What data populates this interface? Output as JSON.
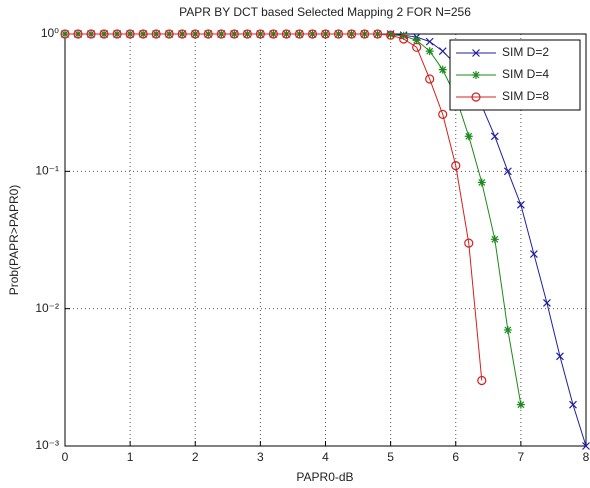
{
  "chart_data": {
    "type": "line",
    "title": "PAPR BY DCT based Selected Mapping 2 FOR N=256",
    "x_label": "PAPR0-dB",
    "y_label": "Prob(PAPR>PAPR0)",
    "x": [
      0,
      0.2,
      0.4,
      0.6,
      0.8,
      1,
      1.2,
      1.4,
      1.6,
      1.8,
      2,
      2.2,
      2.4,
      2.6,
      2.8,
      3,
      3.2,
      3.4,
      3.6,
      3.8,
      4,
      4.2,
      4.4,
      4.6,
      4.8,
      5,
      5.2,
      5.4,
      5.6,
      5.8,
      6,
      6.2,
      6.4,
      6.6,
      6.8,
      7,
      7.2,
      7.4,
      7.6,
      7.8,
      8
    ],
    "series": [
      {
        "name": "SIM D=2",
        "color": "#1f1f9f",
        "marker": "x",
        "values": [
          1,
          1,
          1,
          1,
          1,
          1,
          1,
          1,
          1,
          1,
          1,
          1,
          1,
          1,
          1,
          1,
          1,
          1,
          1,
          1,
          1,
          1,
          1,
          1,
          1,
          1,
          0.98,
          0.95,
          0.88,
          0.75,
          0.6,
          0.45,
          0.3,
          0.18,
          0.1,
          0.057,
          0.025,
          0.011,
          0.0045,
          0.002,
          0.001
        ]
      },
      {
        "name": "SIM D=4",
        "color": "#1a8a1a",
        "marker": "star",
        "values": [
          1,
          1,
          1,
          1,
          1,
          1,
          1,
          1,
          1,
          1,
          1,
          1,
          1,
          1,
          1,
          1,
          1,
          1,
          1,
          1,
          1,
          1,
          1,
          1,
          1,
          0.99,
          0.97,
          0.9,
          0.75,
          0.55,
          0.35,
          0.18,
          0.083,
          0.032,
          0.007,
          0.002,
          null,
          null,
          null,
          null,
          null
        ]
      },
      {
        "name": "SIM D=8",
        "color": "#d42020",
        "marker": "circle",
        "values": [
          1,
          1,
          1,
          1,
          1,
          1,
          1,
          1,
          1,
          1,
          1,
          1,
          1,
          1,
          1,
          1,
          1,
          1,
          1,
          1,
          1,
          1,
          1,
          1,
          1,
          0.98,
          0.92,
          0.8,
          0.47,
          0.26,
          0.11,
          0.03,
          0.003,
          null,
          null,
          null,
          null,
          null,
          null,
          null,
          null
        ]
      }
    ],
    "xlim": [
      0,
      8
    ],
    "xticks": [
      0,
      1,
      2,
      3,
      4,
      5,
      6,
      7,
      8
    ],
    "ylim": [
      0.001,
      1
    ],
    "ylog": true,
    "yticks": [
      {
        "value": 0.001,
        "label": "10⁻³"
      },
      {
        "value": 0.01,
        "label": "10⁻²"
      },
      {
        "value": 0.1,
        "label": "10⁻¹"
      },
      {
        "value": 1,
        "label": "10⁰"
      }
    ],
    "grid": true,
    "legend": "upper right"
  }
}
